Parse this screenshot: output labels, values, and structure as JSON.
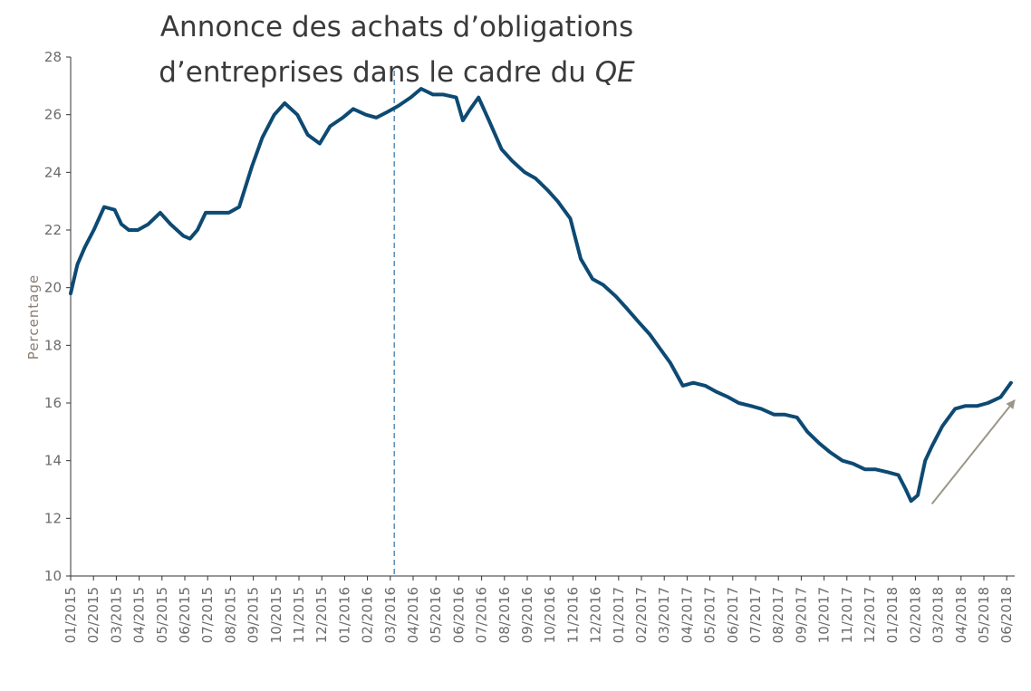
{
  "chart_data": {
    "type": "line",
    "ylabel": "Percentage",
    "ylim": [
      10,
      28
    ],
    "yticks": [
      10,
      12,
      14,
      16,
      18,
      20,
      22,
      24,
      26,
      28
    ],
    "xticks": [
      "01/2015",
      "02/2015",
      "03/2015",
      "04/2015",
      "05/2015",
      "06/2015",
      "07/2015",
      "08/2015",
      "09/2015",
      "10/2015",
      "11/2015",
      "12/2015",
      "01/2016",
      "02/2016",
      "03/2016",
      "04/2016",
      "05/2016",
      "06/2016",
      "07/2016",
      "08/2016",
      "09/2016",
      "10/2016",
      "11/2016",
      "12/2016",
      "01/2017",
      "02/2017",
      "03/2017",
      "04/2017",
      "05/2017",
      "06/2017",
      "07/2017",
      "08/2017",
      "09/2017",
      "10/2017",
      "11/2017",
      "12/2017",
      "01/2018",
      "02/2018",
      "03/2018",
      "04/2018",
      "05/2018",
      "06/2018"
    ],
    "series": [
      {
        "color": "#0d4a73",
        "x": [
          "2015-01-01",
          "2015-01-10",
          "2015-01-20",
          "2015-02-01",
          "2015-02-15",
          "2015-03-01",
          "2015-03-10",
          "2015-03-20",
          "2015-04-01",
          "2015-04-15",
          "2015-05-01",
          "2015-05-15",
          "2015-06-01",
          "2015-06-10",
          "2015-06-20",
          "2015-07-01",
          "2015-07-15",
          "2015-08-01",
          "2015-08-15",
          "2015-09-01",
          "2015-09-15",
          "2015-10-01",
          "2015-10-15",
          "2015-11-01",
          "2015-11-15",
          "2015-12-01",
          "2015-12-15",
          "2016-01-01",
          "2016-01-15",
          "2016-02-01",
          "2016-02-15",
          "2016-03-01",
          "2016-03-15",
          "2016-04-01",
          "2016-04-15",
          "2016-05-01",
          "2016-05-15",
          "2016-06-01",
          "2016-06-10",
          "2016-06-20",
          "2016-07-01",
          "2016-07-15",
          "2016-08-01",
          "2016-08-15",
          "2016-09-01",
          "2016-09-15",
          "2016-10-01",
          "2016-10-15",
          "2016-11-01",
          "2016-11-15",
          "2016-12-01",
          "2016-12-15",
          "2017-01-01",
          "2017-01-15",
          "2017-02-01",
          "2017-02-15",
          "2017-03-01",
          "2017-03-15",
          "2017-04-01",
          "2017-04-15",
          "2017-05-01",
          "2017-05-15",
          "2017-06-01",
          "2017-06-15",
          "2017-07-01",
          "2017-07-15",
          "2017-08-01",
          "2017-08-15",
          "2017-09-01",
          "2017-09-15",
          "2017-10-01",
          "2017-10-15",
          "2017-11-01",
          "2017-11-15",
          "2017-12-01",
          "2017-12-15",
          "2018-01-01",
          "2018-01-15",
          "2018-01-25",
          "2018-02-01",
          "2018-02-10",
          "2018-02-20",
          "2018-03-01",
          "2018-03-15",
          "2018-04-01",
          "2018-04-15",
          "2018-05-01",
          "2018-05-15",
          "2018-06-01",
          "2018-06-15"
        ],
        "values": [
          19.8,
          20.8,
          21.4,
          22.0,
          22.8,
          22.7,
          22.2,
          22.0,
          22.0,
          22.2,
          22.6,
          22.2,
          21.8,
          21.7,
          22.0,
          22.6,
          22.6,
          22.6,
          22.8,
          24.2,
          25.2,
          26.0,
          26.4,
          26.0,
          25.3,
          25.0,
          25.6,
          25.9,
          26.2,
          26.0,
          25.9,
          26.1,
          26.3,
          26.6,
          26.9,
          26.7,
          26.7,
          26.6,
          25.8,
          26.2,
          26.6,
          25.8,
          24.8,
          24.4,
          24.0,
          23.8,
          23.4,
          23.0,
          22.4,
          21.0,
          20.3,
          20.1,
          19.7,
          19.3,
          18.8,
          18.4,
          17.9,
          17.4,
          16.6,
          16.7,
          16.6,
          16.4,
          16.2,
          16.0,
          15.9,
          15.8,
          15.6,
          15.6,
          15.5,
          15.0,
          14.6,
          14.3,
          14.0,
          13.9,
          13.7,
          13.7,
          13.6,
          13.5,
          13.0,
          12.6,
          12.8,
          14.0,
          14.5,
          15.2,
          15.8,
          15.9,
          15.9,
          16.0,
          16.2,
          16.7
        ]
      }
    ],
    "vline": {
      "x": "2016-03-10",
      "style": "dashed",
      "color": "#5b8db8"
    },
    "annotation": {
      "line1": "Annonce des achats d’obligations",
      "line2": "d’entreprises dans le cadre du ",
      "line2_italic": "QE"
    },
    "arrow": {
      "from": [
        "2018-03-01",
        12.5
      ],
      "to": [
        "2018-06-20",
        16.1
      ],
      "color": "#9c9688"
    },
    "grid": false,
    "legend": "none"
  }
}
